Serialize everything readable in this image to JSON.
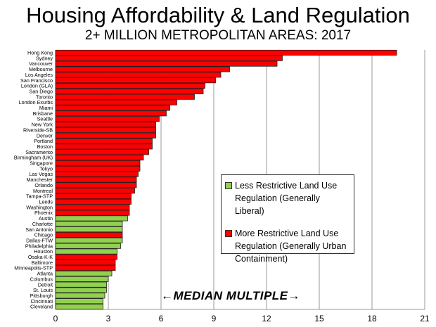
{
  "chart_data": {
    "type": "bar",
    "orientation": "horizontal",
    "title": "Housing Affordability & Land Regulation",
    "subtitle": "2+ MILLION METROPOLITAN AREAS: 2017",
    "xlabel": "←MEDIAN MULTIPLE→",
    "xlim": [
      0,
      21
    ],
    "xticks": [
      "0",
      "3",
      "6",
      "9",
      "12",
      "15",
      "18",
      "21"
    ],
    "grid": true,
    "legend_position": "center-right",
    "series": [
      {
        "name": "Less Restrictive Land Use Regulation (Generally Liberal)",
        "color": "#92d050"
      },
      {
        "name": "More Restrictive Land Use Regulation (Generally Urban Containment)",
        "color": "#ff0000"
      }
    ],
    "categories": [
      "Hong Kong",
      "Sydney",
      "Vancouver",
      "Melbourne",
      "Los Angeles",
      "San Francisco",
      "London (GLA)",
      "San Diego",
      "Toronto",
      "London Exurbs",
      "Miami",
      "Brisbane",
      "Seattle",
      "New York",
      "Riverside-SB",
      "Denver",
      "Portland",
      "Boston",
      "Sacramento",
      "Birmingham (UK)",
      "Singapore",
      "Tokyo",
      "Las Vegas",
      "Manchester",
      "Orlando",
      "Montreal",
      "Tampa-STP",
      "Leeds",
      "Washington",
      "Phoenix",
      "Austin",
      "Charlotte",
      "San Antonio",
      "Chicago",
      "Dallas-FTW",
      "Philadelphia",
      "Houston",
      "Osaka-K-K",
      "Baltimore",
      "Minneapolis-STP",
      "Atlanta",
      "Columbus",
      "Detroit",
      "St. Louis",
      "Pittsburgh",
      "Cincinnati",
      "Cleveland"
    ],
    "values": [
      19.4,
      12.9,
      12.6,
      9.9,
      9.4,
      9.1,
      8.5,
      8.4,
      7.9,
      6.9,
      6.5,
      6.3,
      5.9,
      5.7,
      5.7,
      5.7,
      5.5,
      5.5,
      5.3,
      5.0,
      4.8,
      4.8,
      4.7,
      4.6,
      4.6,
      4.5,
      4.3,
      4.3,
      4.2,
      4.2,
      4.1,
      3.8,
      3.8,
      3.8,
      3.8,
      3.7,
      3.5,
      3.5,
      3.4,
      3.4,
      3.2,
      3.0,
      2.9,
      2.9,
      2.8,
      2.7,
      2.7
    ],
    "regulation": [
      "more",
      "more",
      "more",
      "more",
      "more",
      "more",
      "more",
      "more",
      "more",
      "more",
      "more",
      "more",
      "more",
      "more",
      "more",
      "more",
      "more",
      "more",
      "more",
      "more",
      "more",
      "more",
      "more",
      "more",
      "more",
      "more",
      "more",
      "more",
      "more",
      "more",
      "less",
      "less",
      "less",
      "more",
      "less",
      "less",
      "less",
      "more",
      "more",
      "more",
      "less",
      "less",
      "less",
      "less",
      "less",
      "less",
      "less"
    ]
  }
}
